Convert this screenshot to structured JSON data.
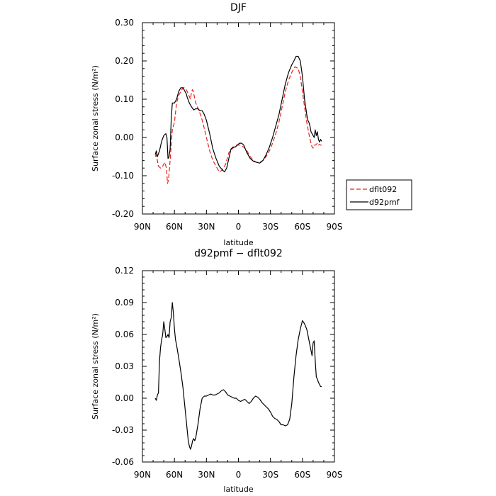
{
  "chart_data": [
    {
      "type": "line",
      "title": "DJF",
      "xlabel": "latitude",
      "ylabel": "Surface zonal stress (N/m²)",
      "ylim": [
        -0.2,
        0.3
      ],
      "xlim": [
        90,
        -90
      ],
      "x_ticks": [
        90,
        60,
        30,
        0,
        -30,
        -60,
        -90
      ],
      "x_tick_labels": [
        "90N",
        "60N",
        "30N",
        "0",
        "30S",
        "60S",
        "90S"
      ],
      "y_ticks": [
        -0.2,
        -0.1,
        0.0,
        0.1,
        0.2,
        0.3
      ],
      "y_tick_labels": [
        "-0.20",
        "-0.10",
        "0.00",
        "0.10",
        "0.20",
        "0.30"
      ],
      "legend_position": "right, outside plot",
      "series": [
        {
          "name": "dflt092",
          "color": "#e8201a",
          "style": "dashed",
          "x": [
            78,
            77,
            76,
            75,
            73,
            71,
            69,
            67.5,
            66.5,
            65.5,
            64,
            62,
            60,
            58,
            56,
            54,
            52,
            51,
            50,
            49,
            48,
            46.5,
            45,
            44,
            43,
            42,
            40,
            37,
            35,
            33,
            30,
            27,
            24,
            21,
            18,
            15,
            12,
            9,
            6,
            4,
            2,
            0,
            -2,
            -5,
            -8,
            -11,
            -14,
            -17,
            -20,
            -23,
            -26,
            -29,
            -32,
            -35,
            -38,
            -41,
            -44,
            -47,
            -50,
            -53,
            -56,
            -57,
            -58,
            -59,
            -60,
            -61,
            -62,
            -64,
            -66,
            -68,
            -69,
            -70,
            -71,
            -72,
            -73,
            -74,
            -75,
            -76,
            -77,
            -78
          ],
          "y": [
            -0.05,
            -0.045,
            -0.06,
            -0.075,
            -0.08,
            -0.075,
            -0.065,
            -0.08,
            -0.12,
            -0.11,
            -0.06,
            0.02,
            0.04,
            0.09,
            0.11,
            0.12,
            0.13,
            0.13,
            0.128,
            0.125,
            0.12,
            0.11,
            0.1,
            0.12,
            0.125,
            0.115,
            0.09,
            0.07,
            0.055,
            0.035,
            0.0,
            -0.035,
            -0.06,
            -0.075,
            -0.09,
            -0.085,
            -0.07,
            -0.04,
            -0.03,
            -0.025,
            -0.02,
            -0.02,
            -0.02,
            -0.025,
            -0.035,
            -0.05,
            -0.06,
            -0.065,
            -0.065,
            -0.06,
            -0.05,
            -0.035,
            -0.015,
            0.01,
            0.04,
            0.08,
            0.12,
            0.15,
            0.17,
            0.185,
            0.18,
            0.17,
            0.16,
            0.14,
            0.12,
            0.1,
            0.08,
            0.04,
            0.01,
            -0.015,
            -0.025,
            -0.028,
            -0.02,
            -0.02,
            -0.018,
            -0.015,
            -0.02,
            -0.018,
            -0.02,
            -0.02
          ]
        },
        {
          "name": "d92pmf",
          "color": "#000000",
          "style": "solid",
          "x": [
            78,
            77,
            76,
            74,
            72,
            70,
            68,
            67,
            66,
            65,
            64,
            63,
            62,
            61,
            60,
            58,
            56,
            54,
            52,
            50,
            49,
            48,
            46,
            44,
            42,
            40,
            38,
            36,
            34,
            32,
            30,
            27,
            24,
            21,
            18,
            15,
            13,
            11,
            9,
            7,
            5,
            3,
            1,
            -1,
            -3,
            -5,
            -8,
            -11,
            -14,
            -17,
            -20,
            -23,
            -26,
            -29,
            -32,
            -35,
            -38,
            -41,
            -44,
            -47,
            -50,
            -52,
            -54,
            -56,
            -58,
            -59,
            -60,
            -61,
            -62,
            -63,
            -64,
            -65,
            -66,
            -67,
            -68,
            -69,
            -70,
            -71,
            -72,
            -73,
            -74,
            -75,
            -76,
            -77,
            -78
          ],
          "y": [
            -0.045,
            -0.035,
            -0.05,
            -0.035,
            -0.01,
            0.005,
            0.01,
            0.0,
            -0.055,
            -0.05,
            -0.03,
            0.05,
            0.09,
            0.09,
            0.09,
            0.1,
            0.12,
            0.13,
            0.13,
            0.12,
            0.115,
            0.105,
            0.09,
            0.08,
            0.072,
            0.075,
            0.075,
            0.07,
            0.07,
            0.06,
            0.045,
            0.01,
            -0.03,
            -0.055,
            -0.075,
            -0.085,
            -0.09,
            -0.08,
            -0.055,
            -0.03,
            -0.025,
            -0.025,
            -0.02,
            -0.015,
            -0.015,
            -0.02,
            -0.04,
            -0.055,
            -0.062,
            -0.065,
            -0.067,
            -0.06,
            -0.045,
            -0.025,
            0.0,
            0.03,
            0.06,
            0.1,
            0.14,
            0.17,
            0.19,
            0.2,
            0.212,
            0.212,
            0.2,
            0.18,
            0.16,
            0.13,
            0.1,
            0.08,
            0.06,
            0.045,
            0.04,
            0.03,
            0.015,
            0.01,
            0.005,
            0.0,
            0.02,
            0.005,
            0.015,
            -0.005,
            -0.012,
            -0.005,
            -0.01
          ]
        }
      ]
    },
    {
      "type": "line",
      "title": "d92pmf − dflt092",
      "xlabel": "latitude",
      "ylabel": "Surface zonal stress (N/m²)",
      "ylim": [
        -0.06,
        0.12
      ],
      "xlim": [
        90,
        -90
      ],
      "x_ticks": [
        90,
        60,
        30,
        0,
        -30,
        -60,
        -90
      ],
      "x_tick_labels": [
        "90N",
        "60N",
        "30N",
        "0",
        "30S",
        "60S",
        "90S"
      ],
      "y_ticks": [
        -0.06,
        -0.03,
        0.0,
        0.03,
        0.06,
        0.09,
        0.12
      ],
      "y_tick_labels": [
        "-0.06",
        "-0.03",
        "0.00",
        "0.03",
        "0.06",
        "0.09",
        "0.12"
      ],
      "series": [
        {
          "name": "",
          "color": "#000000",
          "style": "solid",
          "x": [
            78,
            77,
            76,
            75,
            74,
            73,
            72,
            71,
            70,
            69,
            68,
            67,
            66,
            65,
            64,
            63,
            62,
            61,
            60,
            59,
            58,
            56,
            54,
            52,
            50,
            49,
            48,
            47,
            46,
            45,
            44,
            43,
            42,
            41,
            40,
            38,
            36,
            34,
            32,
            30,
            28,
            26,
            24,
            22,
            20,
            18,
            16,
            14,
            12,
            10,
            8,
            6,
            4,
            2,
            0,
            -2,
            -4,
            -6,
            -8,
            -10,
            -12,
            -14,
            -16,
            -18,
            -20,
            -22,
            -24,
            -26,
            -28,
            -30,
            -32,
            -34,
            -36,
            -38,
            -40,
            -42,
            -44,
            -46,
            -48,
            -50,
            -52,
            -54,
            -56,
            -58,
            -60,
            -62,
            -64,
            -65,
            -66,
            -67,
            -68,
            -69,
            -70,
            -71,
            -72,
            -73,
            -74,
            -75,
            -76,
            -77,
            -78
          ],
          "y": [
            0.0,
            -0.002,
            0.003,
            0.005,
            0.035,
            0.048,
            0.055,
            0.06,
            0.072,
            0.065,
            0.057,
            0.058,
            0.06,
            0.057,
            0.072,
            0.076,
            0.09,
            0.08,
            0.065,
            0.055,
            0.05,
            0.038,
            0.025,
            0.01,
            -0.01,
            -0.02,
            -0.03,
            -0.04,
            -0.045,
            -0.048,
            -0.045,
            -0.04,
            -0.038,
            -0.04,
            -0.037,
            -0.025,
            -0.01,
            0.0,
            0.002,
            0.002,
            0.003,
            0.004,
            0.003,
            0.003,
            0.004,
            0.005,
            0.007,
            0.008,
            0.006,
            0.003,
            0.002,
            0.001,
            0.0,
            0.0,
            -0.002,
            -0.003,
            -0.002,
            -0.001,
            -0.003,
            -0.005,
            -0.003,
            0.0,
            0.002,
            0.001,
            -0.001,
            -0.004,
            -0.006,
            -0.008,
            -0.01,
            -0.013,
            -0.017,
            -0.019,
            -0.02,
            -0.022,
            -0.025,
            -0.025,
            -0.026,
            -0.025,
            -0.02,
            -0.005,
            0.02,
            0.04,
            0.055,
            0.065,
            0.073,
            0.07,
            0.065,
            0.06,
            0.055,
            0.05,
            0.045,
            0.04,
            0.052,
            0.054,
            0.035,
            0.02,
            0.018,
            0.015,
            0.013,
            0.011,
            0.011
          ]
        }
      ]
    }
  ]
}
